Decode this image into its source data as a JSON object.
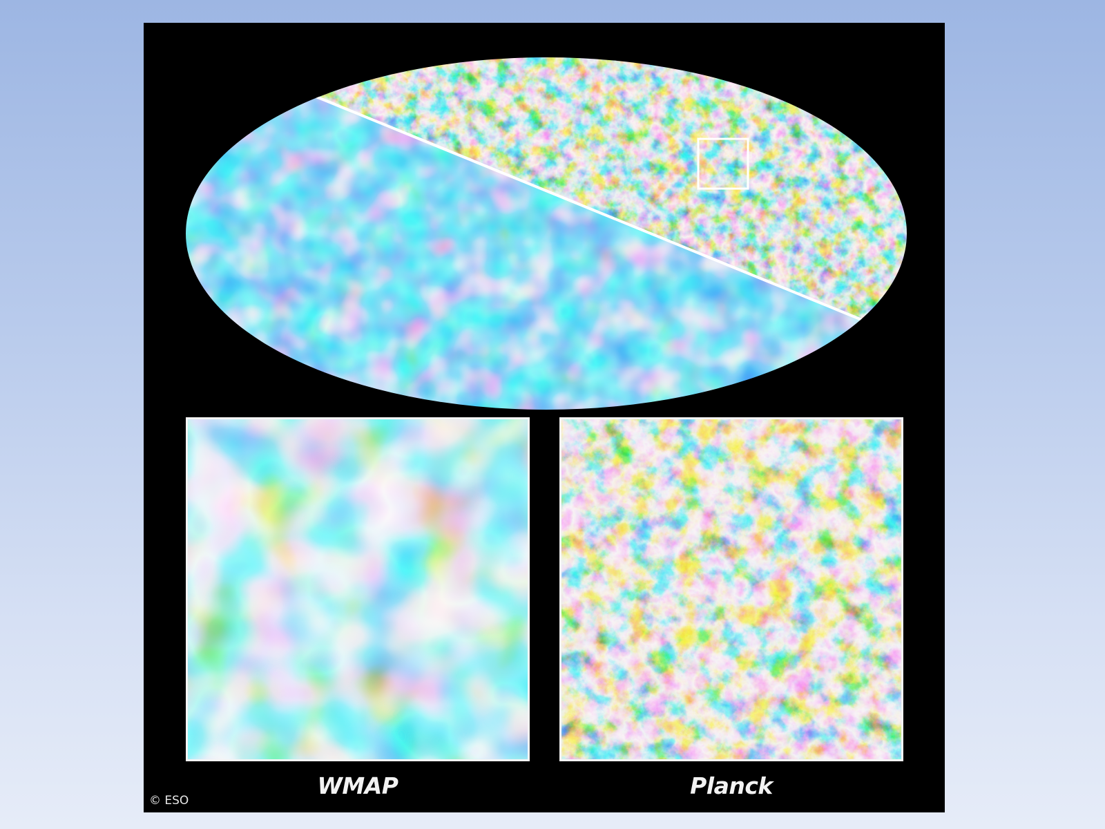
{
  "figure": {
    "panels": [
      {
        "id": "wmap",
        "caption": "WMAP"
      },
      {
        "id": "planck",
        "caption": "Planck"
      }
    ],
    "credit": "© ESO"
  },
  "colors": {
    "background_frame": "#000000",
    "cold": "#0a3fc8",
    "cool": "#37a6e8",
    "neutral": "#f1e6c8",
    "warm": "#f2a03a",
    "hot": "#c4430f",
    "divider": "#ffffff"
  }
}
